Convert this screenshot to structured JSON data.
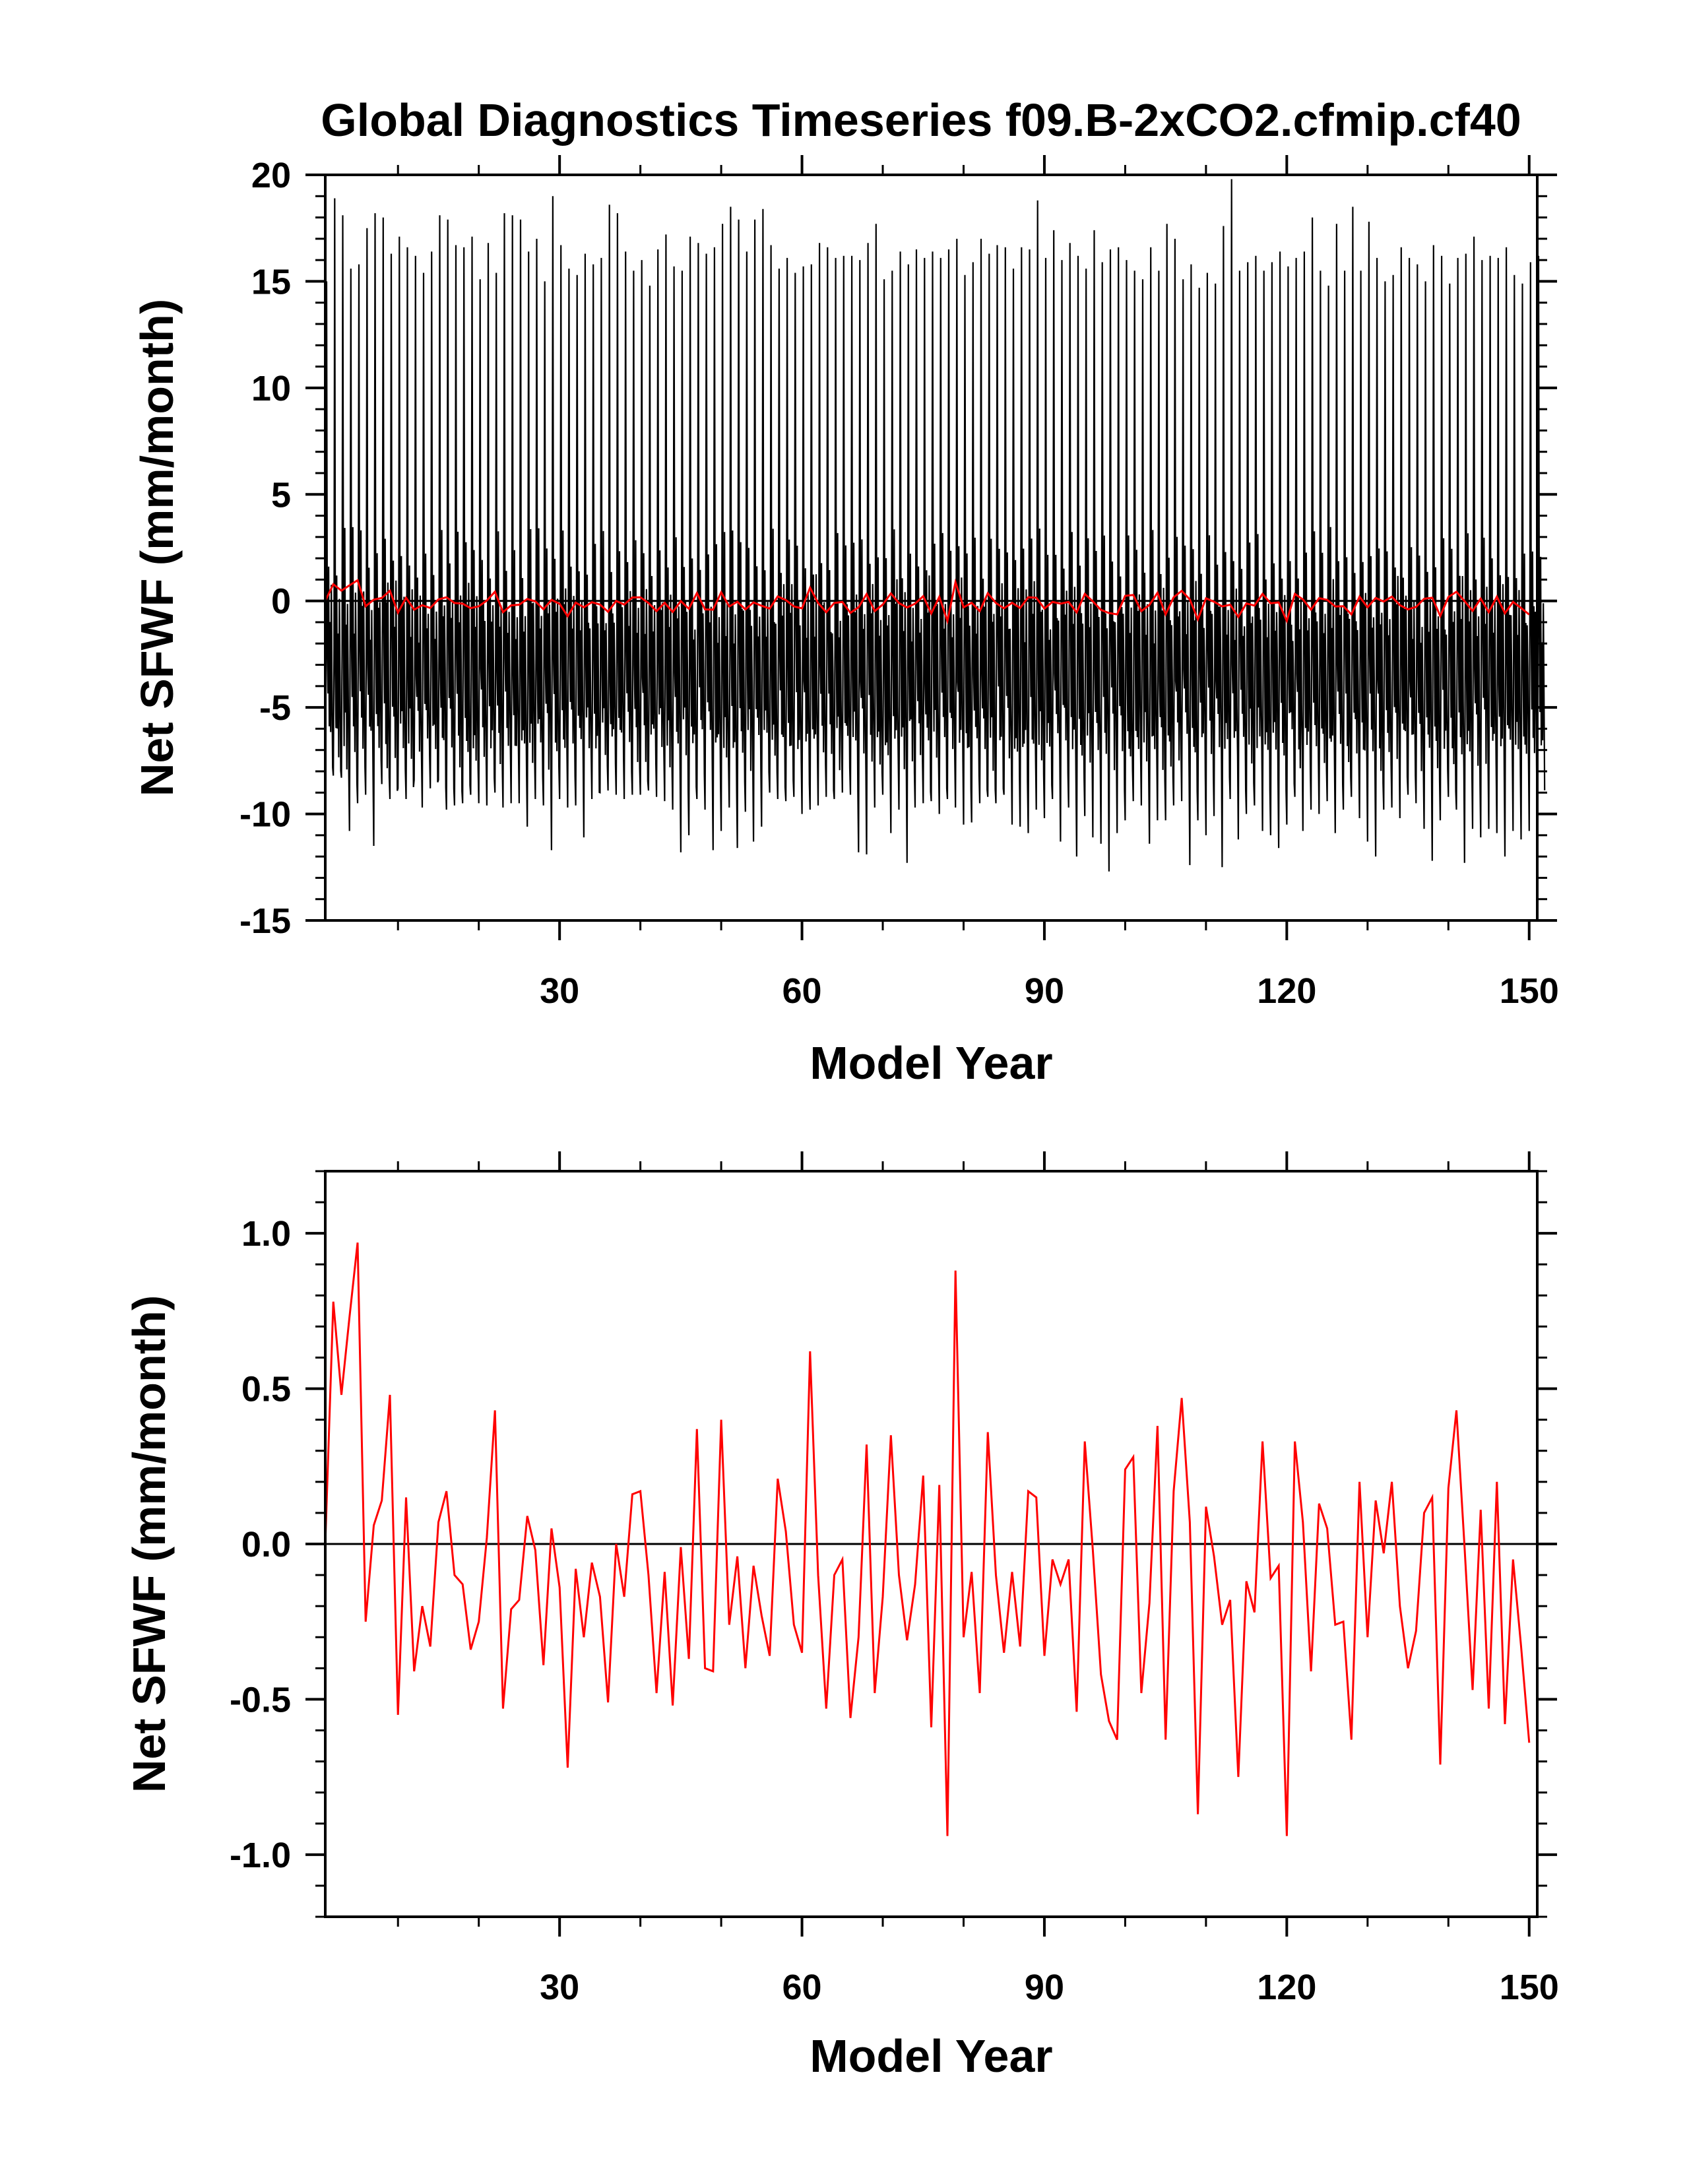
{
  "figure": {
    "title": "Global Diagnostics Timeseries f09.B-2xCO2.cfmip.cf40"
  },
  "colors": {
    "monthly": "#000000",
    "annual": "#ff0000",
    "zero_line": "#000000"
  },
  "chart_data": [
    {
      "type": "line",
      "title": "Global Diagnostics Timeseries f09.B-2xCO2.cfmip.cf40",
      "xlabel": "Model Year",
      "ylabel": "Net SFWF (mm/month)",
      "xlim": [
        1,
        151
      ],
      "ylim": [
        -15,
        20
      ],
      "x_major_ticks": [
        30,
        60,
        90,
        120,
        150
      ],
      "x_tick_labels": [
        "30",
        "60",
        "90",
        "120",
        "150"
      ],
      "y_major_ticks": [
        -15,
        -10,
        -5,
        0,
        5,
        10,
        15,
        20
      ],
      "y_tick_labels": [
        "-15",
        "-10",
        "-5",
        "0",
        "5",
        "10",
        "15",
        "20"
      ],
      "reference_line": 0,
      "series": [
        {
          "color": "#000000",
          "monthly_seasonal_cycle": true,
          "x_start": 1,
          "x_step": 1,
          "annual_peak": [
            15.0,
            18.9,
            18.1,
            15.6,
            15.8,
            17.5,
            18.2,
            18.0,
            16.3,
            17.1,
            16.6,
            16.2,
            15.4,
            16.4,
            18.1,
            17.9,
            16.7,
            16.6,
            17.1,
            15.1,
            16.8,
            15.4,
            18.2,
            18.1,
            17.9,
            16.4,
            17.0,
            15.0,
            19.0,
            16.7,
            15.6,
            15.3,
            16.3,
            15.8,
            16.1,
            18.6,
            18.2,
            16.4,
            15.5,
            16.0,
            14.8,
            16.5,
            17.2,
            15.7,
            15.5,
            17.1,
            16.8,
            16.3,
            16.6,
            17.7,
            18.5,
            17.9,
            16.4,
            17.9,
            18.4,
            16.7,
            15.6,
            16.1,
            15.4,
            15.7,
            15.8,
            16.8,
            16.6,
            16.1,
            16.2,
            16.2,
            16.0,
            16.8,
            17.7,
            15.1,
            15.5,
            16.4,
            15.8,
            16.5,
            16.1,
            16.4,
            16.1,
            16.5,
            17.0,
            15.3,
            15.9,
            17.0,
            16.3,
            16.7,
            16.6,
            15.6,
            16.6,
            16.5,
            18.8,
            16.1,
            17.4,
            16.0,
            16.8,
            16.2,
            15.6,
            17.4,
            15.9,
            16.5,
            16.6,
            16.0,
            15.5,
            15.1,
            16.6,
            15.5,
            17.7,
            17.0,
            15.1,
            15.8,
            14.7,
            15.4,
            14.9,
            17.6,
            19.8,
            15.5,
            15.9,
            16.2,
            15.5,
            15.9,
            16.4,
            15.7,
            16.1,
            16.4,
            18.0,
            15.5,
            14.8,
            17.7,
            15.5,
            18.5,
            15.5,
            17.8,
            16.1,
            15.0,
            15.3,
            16.6,
            16.1,
            15.8,
            15.0,
            16.7,
            16.2,
            14.9,
            16.1,
            16.3,
            17.1,
            16.0,
            16.2,
            16.1,
            16.6,
            15.3,
            14.9,
            15.9,
            16.2,
            15.0,
            15.8,
            16.1
          ],
          "annual_trough": [
            -8.1,
            -8.2,
            -8.3,
            -10.8,
            -9.5,
            -9.1,
            -11.5,
            -8.6,
            -9.3,
            -8.8,
            -9.3,
            -8.4,
            -9.7,
            -8.8,
            -8.4,
            -9.8,
            -9.6,
            -9.5,
            -9.1,
            -9.5,
            -9.6,
            -9.0,
            -9.7,
            -9.5,
            -9.5,
            -10.6,
            -9.3,
            -9.6,
            -11.7,
            -9.3,
            -9.7,
            -9.6,
            -11.1,
            -9.3,
            -9.0,
            -8.9,
            -9.1,
            -9.3,
            -9.1,
            -9.1,
            -8.9,
            -9.2,
            -9.4,
            -9.8,
            -11.8,
            -11.0,
            -9.3,
            -9.8,
            -11.7,
            -10.8,
            -9.7,
            -11.6,
            -9.9,
            -11.3,
            -10.6,
            -9.0,
            -9.3,
            -9.4,
            -9.2,
            -10.0,
            -9.8,
            -9.6,
            -9.2,
            -9.3,
            -9.0,
            -9.1,
            -11.8,
            -11.9,
            -9.7,
            -9.1,
            -10.9,
            -9.8,
            -12.3,
            -9.7,
            -9.5,
            -9.4,
            -10.0,
            -9.3,
            -9.7,
            -10.5,
            -10.4,
            -9.5,
            -9.2,
            -9.5,
            -9.1,
            -10.5,
            -10.6,
            -10.9,
            -9.8,
            -10.2,
            -9.3,
            -11.3,
            -9.7,
            -12.0,
            -10.1,
            -11.1,
            -11.4,
            -12.7,
            -10.9,
            -10.3,
            -9.4,
            -9.6,
            -11.4,
            -10.3,
            -10.3,
            -9.6,
            -9.4,
            -12.4,
            -10.3,
            -11.0,
            -10.1,
            -12.5,
            -9.3,
            -11.2,
            -10.0,
            -9.6,
            -10.8,
            -11.0,
            -11.6,
            -10.5,
            -9.2,
            -10.8,
            -9.8,
            -10.0,
            -9.4,
            -10.9,
            -9.8,
            -9.2,
            -10.2,
            -11.3,
            -12.0,
            -9.8,
            -9.7,
            -10.2,
            -9.1,
            -9.5,
            -10.7,
            -12.2,
            -10.3,
            -9.2,
            -9.8,
            -12.3,
            -10.7,
            -11.1,
            -10.7,
            -10.9,
            -12.0,
            -10.8,
            -11.2,
            -10.8,
            -10.9
          ]
        },
        {
          "color": "#ff0000",
          "x_start": 1,
          "x_step": 1,
          "values_ref": "annual_mean"
        }
      ]
    },
    {
      "type": "line",
      "xlabel": "Model Year",
      "ylabel": "Net SFWF (mm/month)",
      "xlim": [
        1,
        151
      ],
      "ylim": [
        -1.2,
        1.2
      ],
      "x_major_ticks": [
        30,
        60,
        90,
        120,
        150
      ],
      "x_tick_labels": [
        "30",
        "60",
        "90",
        "120",
        "150"
      ],
      "y_major_ticks": [
        -1.0,
        -0.5,
        0.0,
        0.5,
        1.0
      ],
      "y_tick_labels": [
        "-1.0",
        "-0.5",
        "0.0",
        "0.5",
        "1.0"
      ],
      "reference_line": 0,
      "series": [
        {
          "color": "#ff0000",
          "x_start": 1,
          "x_step": 1,
          "values": [
            0.0,
            0.78,
            0.48,
            0.73,
            0.97,
            -0.25,
            0.06,
            0.14,
            0.48,
            -0.55,
            0.15,
            -0.41,
            -0.2,
            -0.33,
            0.07,
            0.17,
            -0.1,
            -0.13,
            -0.34,
            -0.25,
            0.02,
            0.43,
            -0.53,
            -0.21,
            -0.18,
            0.09,
            -0.02,
            -0.39,
            0.05,
            -0.14,
            -0.72,
            -0.08,
            -0.3,
            -0.06,
            -0.17,
            -0.51,
            0.0,
            -0.17,
            0.16,
            0.17,
            -0.1,
            -0.48,
            -0.09,
            -0.52,
            -0.01,
            -0.37,
            0.37,
            -0.4,
            -0.41,
            0.4,
            -0.26,
            -0.04,
            -0.4,
            -0.07,
            -0.23,
            -0.36,
            0.21,
            0.04,
            -0.26,
            -0.35,
            0.62,
            -0.1,
            -0.53,
            -0.1,
            -0.05,
            -0.56,
            -0.3,
            0.32,
            -0.48,
            -0.17,
            0.35,
            -0.1,
            -0.31,
            -0.13,
            0.22,
            -0.59,
            0.19,
            -0.94,
            0.88,
            -0.3,
            -0.09,
            -0.48,
            0.36,
            -0.1,
            -0.35,
            -0.09,
            -0.33,
            0.17,
            0.15,
            -0.36,
            -0.05,
            -0.13,
            -0.05,
            -0.54,
            0.33,
            -0.02,
            -0.42,
            -0.57,
            -0.63,
            0.24,
            0.28,
            -0.48,
            -0.19,
            0.38,
            -0.63,
            0.17,
            0.47,
            0.07,
            -0.87,
            0.12,
            -0.04,
            -0.26,
            -0.18,
            -0.75,
            -0.12,
            -0.22,
            0.33,
            -0.11,
            -0.07,
            -0.94,
            0.33,
            0.07,
            -0.41,
            0.13,
            0.05,
            -0.26,
            -0.25,
            -0.63,
            0.2,
            -0.3,
            0.14,
            -0.03,
            0.2,
            -0.2,
            -0.4,
            -0.28,
            0.1,
            0.15,
            -0.71,
            0.18,
            0.43,
            -0.01,
            -0.47,
            0.11,
            -0.53,
            0.2,
            -0.58,
            -0.05,
            -0.33,
            -0.64
          ]
        }
      ]
    }
  ]
}
